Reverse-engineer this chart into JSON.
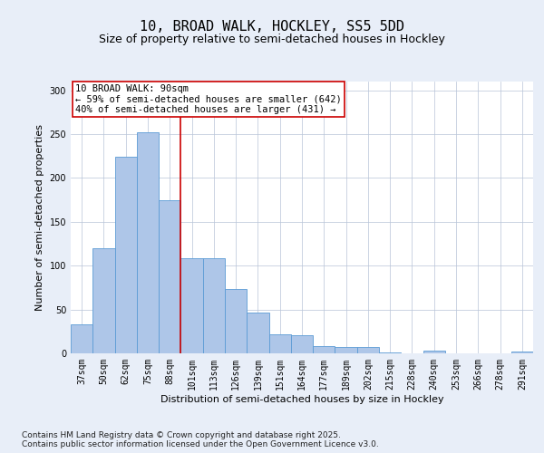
{
  "title1": "10, BROAD WALK, HOCKLEY, SS5 5DD",
  "title2": "Size of property relative to semi-detached houses in Hockley",
  "xlabel": "Distribution of semi-detached houses by size in Hockley",
  "ylabel": "Number of semi-detached properties",
  "categories": [
    "37sqm",
    "50sqm",
    "62sqm",
    "75sqm",
    "88sqm",
    "101sqm",
    "113sqm",
    "126sqm",
    "139sqm",
    "151sqm",
    "164sqm",
    "177sqm",
    "189sqm",
    "202sqm",
    "215sqm",
    "228sqm",
    "240sqm",
    "253sqm",
    "266sqm",
    "278sqm",
    "291sqm"
  ],
  "values": [
    33,
    120,
    224,
    252,
    175,
    109,
    109,
    73,
    46,
    22,
    21,
    8,
    7,
    7,
    1,
    0,
    3,
    0,
    0,
    0,
    2
  ],
  "bar_color": "#aec6e8",
  "bar_edge_color": "#5b9bd5",
  "highlight_index": 4,
  "property_size": "90sqm",
  "pct_smaller": 59,
  "count_smaller": 642,
  "pct_larger": 40,
  "count_larger": 431,
  "annotation_text": "10 BROAD WALK: 90sqm\n← 59% of semi-detached houses are smaller (642)\n40% of semi-detached houses are larger (431) →",
  "vline_color": "#cc0000",
  "box_edge_color": "#cc0000",
  "ylim": [
    0,
    310
  ],
  "yticks": [
    0,
    50,
    100,
    150,
    200,
    250,
    300
  ],
  "footer": "Contains HM Land Registry data © Crown copyright and database right 2025.\nContains public sector information licensed under the Open Government Licence v3.0.",
  "bg_color": "#e8eef8",
  "plot_bg_color": "#ffffff",
  "title1_fontsize": 11,
  "title2_fontsize": 9,
  "annot_fontsize": 7.5,
  "footer_fontsize": 6.5,
  "tick_fontsize": 7,
  "axis_label_fontsize": 8,
  "ylabel_fontsize": 8
}
